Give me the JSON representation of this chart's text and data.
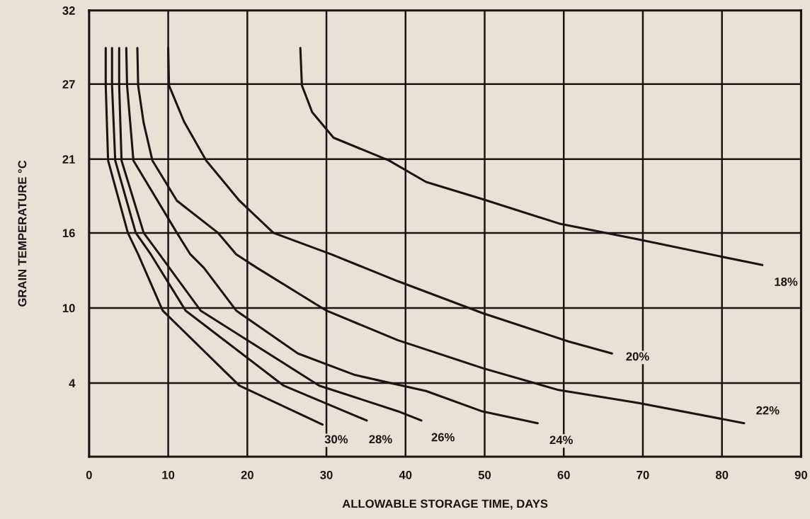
{
  "chart_data": {
    "type": "line",
    "xlabel": "ALLOWABLE STORAGE TIME, DAYS",
    "ylabel": "GRAIN TEMPERATURE °C",
    "xlim": [
      0,
      90
    ],
    "xticks": [
      0,
      10,
      20,
      30,
      40,
      50,
      60,
      70,
      80,
      90
    ],
    "ylim": [
      -1.1,
      32.2
    ],
    "yticks": [
      {
        "value": 32.2,
        "label": "32"
      },
      {
        "value": 26.7,
        "label": "27"
      },
      {
        "value": 21.1,
        "label": "21"
      },
      {
        "value": 15.6,
        "label": "16"
      },
      {
        "value": 10,
        "label": "10"
      },
      {
        "value": 4.4,
        "label": "4"
      }
    ],
    "grid": true,
    "legend": false,
    "marker": "none",
    "line_style": "solid",
    "series": [
      {
        "name": "18%",
        "color": "#1a1414",
        "x": [
          26.7,
          26.9,
          28.2,
          30.9,
          37.9,
          42.6,
          49.8,
          59.4,
          69.5,
          85.1
        ],
        "values": [
          29.4,
          26.6,
          24.6,
          22.7,
          21.0,
          19.4,
          18.1,
          16.3,
          15.1,
          13.2
        ]
      },
      {
        "name": "20%",
        "color": "#1a1414",
        "x": [
          10.0,
          10.1,
          12.0,
          14.8,
          19.0,
          23.3,
          30.6,
          39.0,
          49.8,
          60.6,
          66.1
        ],
        "values": [
          29.4,
          26.6,
          23.9,
          21.0,
          18.0,
          15.6,
          14.0,
          12.0,
          9.6,
          7.5,
          6.6
        ]
      },
      {
        "name": "22%",
        "color": "#1a1414",
        "x": [
          6.1,
          6.2,
          6.9,
          8.0,
          11.1,
          16.3,
          18.6,
          21.2,
          30.0,
          39.0,
          49.8,
          59.2,
          69.5,
          82.8
        ],
        "values": [
          29.4,
          26.6,
          23.8,
          21.0,
          18.0,
          15.6,
          14.0,
          13.0,
          9.8,
          7.6,
          5.5,
          3.9,
          2.9,
          1.4
        ]
      },
      {
        "name": "24%",
        "color": "#1a1414",
        "x": [
          4.7,
          4.8,
          5.6,
          11.1,
          12.8,
          14.5,
          18.6,
          26.4,
          33.6,
          42.6,
          49.6,
          56.7
        ],
        "values": [
          29.4,
          26.6,
          21.0,
          15.6,
          14.0,
          13.0,
          9.8,
          6.6,
          5.0,
          3.8,
          2.3,
          1.4
        ]
      },
      {
        "name": "26%",
        "color": "#1a1414",
        "x": [
          3.8,
          3.8,
          4.1,
          6.9,
          8.9,
          14.1,
          29.1,
          39.0,
          42.0
        ],
        "values": [
          29.4,
          26.6,
          21.0,
          15.6,
          14.0,
          9.8,
          4.2,
          2.3,
          1.6
        ]
      },
      {
        "name": "28%",
        "color": "#1a1414",
        "x": [
          2.9,
          2.9,
          3.3,
          5.9,
          7.8,
          12.2,
          24.6,
          35.1
        ],
        "values": [
          29.4,
          26.6,
          21.0,
          15.6,
          14.0,
          9.8,
          4.2,
          1.6
        ]
      },
      {
        "name": "30%",
        "color": "#1a1414",
        "x": [
          2.1,
          2.1,
          2.4,
          4.9,
          6.2,
          9.3,
          19.0,
          29.5
        ],
        "values": [
          29.4,
          26.6,
          21.0,
          15.6,
          14.0,
          9.8,
          4.2,
          1.3
        ]
      }
    ]
  }
}
